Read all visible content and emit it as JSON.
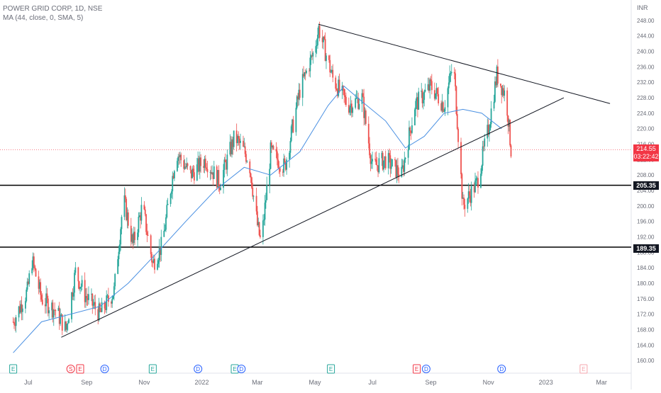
{
  "legend": {
    "symbol": "POWER GRID CORP, 1D, NSE",
    "indicator": "MA (44, close, 0, SMA, 5)"
  },
  "currency": "INR",
  "last_price": "214.55",
  "countdown": "03:22:42",
  "levels": [
    {
      "label": "205.35",
      "value": 205.35
    },
    {
      "label": "189.35",
      "value": 189.35
    }
  ],
  "colors": {
    "up": "#26a69a",
    "down": "#ef5350",
    "ma": "#4a90e2",
    "trendline": "#131722",
    "level": "#000000",
    "last_price": "#f23645"
  },
  "chart_data": {
    "type": "candlestick",
    "title": "POWER GRID CORP, 1D, NSE",
    "ylabel": "INR",
    "ylim": [
      158,
      250
    ],
    "yticks": [
      "160.00",
      "164.00",
      "168.00",
      "172.00",
      "176.00",
      "180.00",
      "184.00",
      "188.00",
      "192.00",
      "196.00",
      "200.00",
      "204.00",
      "208.00",
      "212.00",
      "216.00",
      "220.00",
      "224.00",
      "228.00",
      "232.00",
      "236.00",
      "240.00",
      "244.00",
      "248.00"
    ],
    "xticks": [
      "Jul",
      "Sep",
      "Nov",
      "2022",
      "Mar",
      "May",
      "Jul",
      "Sep",
      "Nov",
      "2023",
      "Mar"
    ],
    "price_path": [
      [
        "Jun 15 2021",
        170
      ],
      [
        "Jun 30 2021",
        178
      ],
      [
        "Jul 5 2021",
        186
      ],
      [
        "Jul 15 2021",
        176
      ],
      [
        "Jul 30 2021",
        173
      ],
      [
        "Aug 10 2021",
        168
      ],
      [
        "Aug 20 2021",
        183
      ],
      [
        "Aug 30 2021",
        177
      ],
      [
        "Sep 15 2021",
        172
      ],
      [
        "Sep 30 2021",
        178
      ],
      [
        "Oct 10 2021",
        202
      ],
      [
        "Oct 20 2021",
        190
      ],
      [
        "Oct 30 2021",
        200
      ],
      [
        "Nov 10 2021",
        185
      ],
      [
        "Nov 20 2021",
        190
      ],
      [
        "Dec 5 2021",
        214
      ],
      [
        "Dec 20 2021",
        208
      ],
      [
        "Jan 5 2022",
        212
      ],
      [
        "Jan 20 2022",
        206
      ],
      [
        "Feb 5 2022",
        218
      ],
      [
        "Feb 20 2022",
        212
      ],
      [
        "Mar 1 2022",
        195
      ],
      [
        "Mar 5 2022",
        190
      ],
      [
        "Mar 15 2022",
        214
      ],
      [
        "Mar 30 2022",
        210
      ],
      [
        "Apr 15 2022",
        230
      ],
      [
        "Apr 30 2022",
        240
      ],
      [
        "May 5 2022",
        246
      ],
      [
        "May 20 2022",
        233
      ],
      [
        "Jun 5 2022",
        226
      ],
      [
        "Jun 20 2022",
        228
      ],
      [
        "Jul 1 2022",
        210
      ],
      [
        "Jul 15 2022",
        212
      ],
      [
        "Aug 1 2022",
        208
      ],
      [
        "Aug 15 2022",
        226
      ],
      [
        "Sep 1 2022",
        231
      ],
      [
        "Sep 15 2022",
        226
      ],
      [
        "Sep 25 2022",
        237
      ],
      [
        "Oct 5 2022",
        200
      ],
      [
        "Oct 20 2022",
        206
      ],
      [
        "Nov 1 2022",
        220
      ],
      [
        "Nov 10 2022",
        234
      ],
      [
        "Nov 20 2022",
        228
      ],
      [
        "Nov 25 2022",
        214.55
      ]
    ],
    "series": [
      {
        "name": "MA (44, close, 0, SMA, 5)",
        "points": [
          [
            "Jun 15 2021",
            162
          ],
          [
            "Jul 15 2021",
            170
          ],
          [
            "Aug 15 2021",
            172
          ],
          [
            "Sep 15 2021",
            174
          ],
          [
            "Oct 15 2021",
            180
          ],
          [
            "Nov 15 2021",
            188
          ],
          [
            "Dec 15 2021",
            196
          ],
          [
            "Jan 15 2022",
            204
          ],
          [
            "Feb 15 2022",
            210
          ],
          [
            "Mar 15 2022",
            208
          ],
          [
            "Apr 15 2022",
            214
          ],
          [
            "May 15 2022",
            226
          ],
          [
            "Jun 1 2022",
            231
          ],
          [
            "Jun 20 2022",
            227
          ],
          [
            "Jul 15 2022",
            222
          ],
          [
            "Aug 5 2022",
            215
          ],
          [
            "Aug 25 2022",
            218
          ],
          [
            "Sep 15 2022",
            224
          ],
          [
            "Oct 5 2022",
            225
          ],
          [
            "Oct 25 2022",
            224
          ],
          [
            "Nov 15 2022",
            220
          ]
        ]
      }
    ],
    "trendlines": [
      {
        "from": [
          "Aug 5 2021",
          166
        ],
        "to": [
          "Jan 20 2023",
          228
        ]
      },
      {
        "from": [
          "May 5 2022",
          247
        ],
        "to": [
          "Mar 10 2023",
          226.5
        ]
      }
    ],
    "horizontal_levels": [
      205.35,
      189.35
    ],
    "x_range": [
      "Jun 1 2021",
      "Mar 31 2023"
    ]
  },
  "events": [
    {
      "date": "Jun 15 2021",
      "letter": "E",
      "kind": "earnings"
    },
    {
      "date": "Aug 15 2021",
      "letter": "S",
      "kind": "split"
    },
    {
      "date": "Aug 25 2021",
      "letter": "E",
      "kind": "earnings-red"
    },
    {
      "date": "Sep 20 2021",
      "letter": "D",
      "kind": "dividend"
    },
    {
      "date": "Nov 10 2021",
      "letter": "E",
      "kind": "earnings"
    },
    {
      "date": "Dec 28 2021",
      "letter": "D",
      "kind": "dividend"
    },
    {
      "date": "Feb 5 2022",
      "letter": "E",
      "kind": "earnings"
    },
    {
      "date": "Feb 12 2022",
      "letter": "D",
      "kind": "dividend"
    },
    {
      "date": "May 18 2022",
      "letter": "E",
      "kind": "earnings"
    },
    {
      "date": "Aug 17 2022",
      "letter": "E",
      "kind": "earnings-red"
    },
    {
      "date": "Aug 27 2022",
      "letter": "D",
      "kind": "dividend"
    },
    {
      "date": "Nov 15 2022",
      "letter": "D",
      "kind": "dividend"
    },
    {
      "date": "Feb 10 2023",
      "letter": "E",
      "kind": "earnings-faded"
    }
  ]
}
